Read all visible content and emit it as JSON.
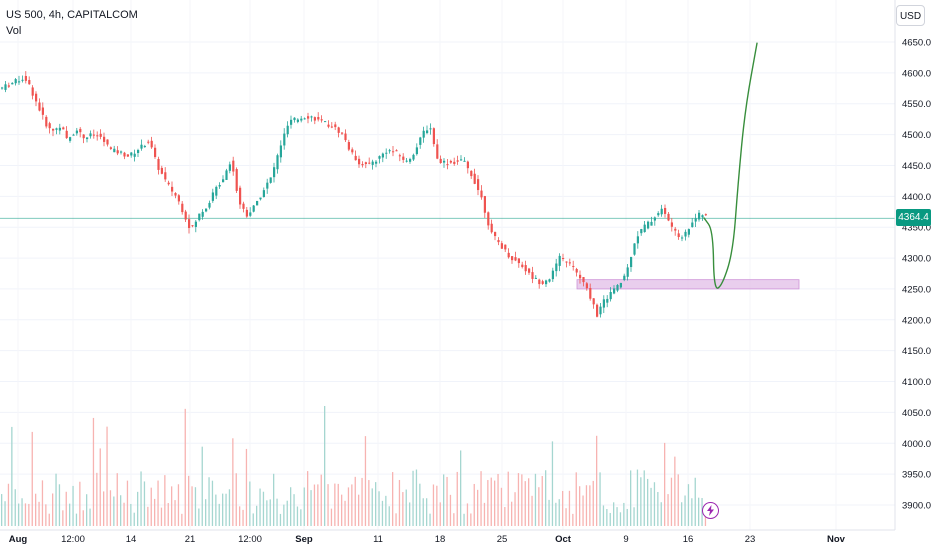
{
  "header": {
    "symbol_line": "US 500, 4h, CAPITALCOM",
    "indicator": "Vol"
  },
  "currency_button": "USD",
  "last_price_label": "4364.4",
  "colors": {
    "up": "#26a69a",
    "down": "#ef5350",
    "drawing": "#388e3c",
    "zone": "#e1bee7",
    "price_line": "#089981"
  },
  "icons": {
    "alert": "lightning-bolt-icon"
  },
  "chart_data": {
    "type": "candlestick",
    "instrument": "US 500",
    "timeframe": "4h",
    "ylim": [
      3875,
      4675
    ],
    "y_ticks": [
      "4650.0",
      "4600.0",
      "4550.0",
      "4500.0",
      "4450.0",
      "4400.0",
      "4350.0",
      "4300.0",
      "4250.0",
      "4200.0",
      "4150.0",
      "4100.0",
      "4050.0",
      "4000.0",
      "3950.0",
      "3900.0"
    ],
    "x_ticks": [
      "Aug",
      "12:00",
      "14",
      "21",
      "12:00",
      "Sep",
      "11",
      "18",
      "25",
      "Oct",
      "9",
      "16",
      "23",
      "Nov"
    ],
    "last_price": 4364.4,
    "price_path": [
      [
        0,
        4575
      ],
      [
        22,
        4592
      ],
      [
        26,
        4588
      ],
      [
        36,
        4550
      ],
      [
        44,
        4520
      ],
      [
        50,
        4505
      ],
      [
        60,
        4515
      ],
      [
        66,
        4490
      ],
      [
        76,
        4510
      ],
      [
        82,
        4495
      ],
      [
        92,
        4500
      ],
      [
        100,
        4495
      ],
      [
        110,
        4475
      ],
      [
        120,
        4470
      ],
      [
        128,
        4465
      ],
      [
        140,
        4480
      ],
      [
        148,
        4490
      ],
      [
        156,
        4450
      ],
      [
        166,
        4420
      ],
      [
        176,
        4398
      ],
      [
        184,
        4368
      ],
      [
        190,
        4345
      ],
      [
        198,
        4370
      ],
      [
        206,
        4385
      ],
      [
        214,
        4410
      ],
      [
        222,
        4430
      ],
      [
        230,
        4460
      ],
      [
        238,
        4390
      ],
      [
        246,
        4370
      ],
      [
        254,
        4385
      ],
      [
        262,
        4410
      ],
      [
        270,
        4430
      ],
      [
        280,
        4485
      ],
      [
        288,
        4520
      ],
      [
        296,
        4525
      ],
      [
        304,
        4530
      ],
      [
        312,
        4528
      ],
      [
        320,
        4520
      ],
      [
        330,
        4515
      ],
      [
        342,
        4500
      ],
      [
        350,
        4470
      ],
      [
        358,
        4455
      ],
      [
        366,
        4450
      ],
      [
        376,
        4460
      ],
      [
        386,
        4475
      ],
      [
        396,
        4470
      ],
      [
        406,
        4455
      ],
      [
        416,
        4480
      ],
      [
        424,
        4510
      ],
      [
        430,
        4510
      ],
      [
        436,
        4460
      ],
      [
        444,
        4455
      ],
      [
        452,
        4455
      ],
      [
        462,
        4458
      ],
      [
        472,
        4430
      ],
      [
        480,
        4400
      ],
      [
        490,
        4340
      ],
      [
        500,
        4320
      ],
      [
        510,
        4300
      ],
      [
        520,
        4290
      ],
      [
        530,
        4270
      ],
      [
        540,
        4260
      ],
      [
        550,
        4270
      ],
      [
        558,
        4300
      ],
      [
        566,
        4295
      ],
      [
        574,
        4280
      ],
      [
        582,
        4260
      ],
      [
        590,
        4235
      ],
      [
        596,
        4208
      ],
      [
        602,
        4228
      ],
      [
        610,
        4245
      ],
      [
        618,
        4255
      ],
      [
        626,
        4280
      ],
      [
        634,
        4330
      ],
      [
        642,
        4350
      ],
      [
        650,
        4360
      ],
      [
        660,
        4380
      ],
      [
        668,
        4360
      ],
      [
        676,
        4335
      ],
      [
        684,
        4338
      ],
      [
        692,
        4362
      ],
      [
        700,
        4372
      ],
      [
        708,
        4364
      ]
    ],
    "volume_scale_max": 1.0,
    "drawings": [
      {
        "type": "zone",
        "price_from": 4250,
        "price_to": 4265,
        "x_from": 577,
        "x_to": 799
      },
      {
        "type": "forecast-curve",
        "points": [
          [
            704,
            4365
          ],
          [
            713,
            4345
          ],
          [
            714,
            4248
          ],
          [
            722,
            4255
          ],
          [
            733,
            4310
          ],
          [
            738,
            4420
          ],
          [
            745,
            4540
          ],
          [
            757,
            4648
          ]
        ]
      }
    ]
  }
}
